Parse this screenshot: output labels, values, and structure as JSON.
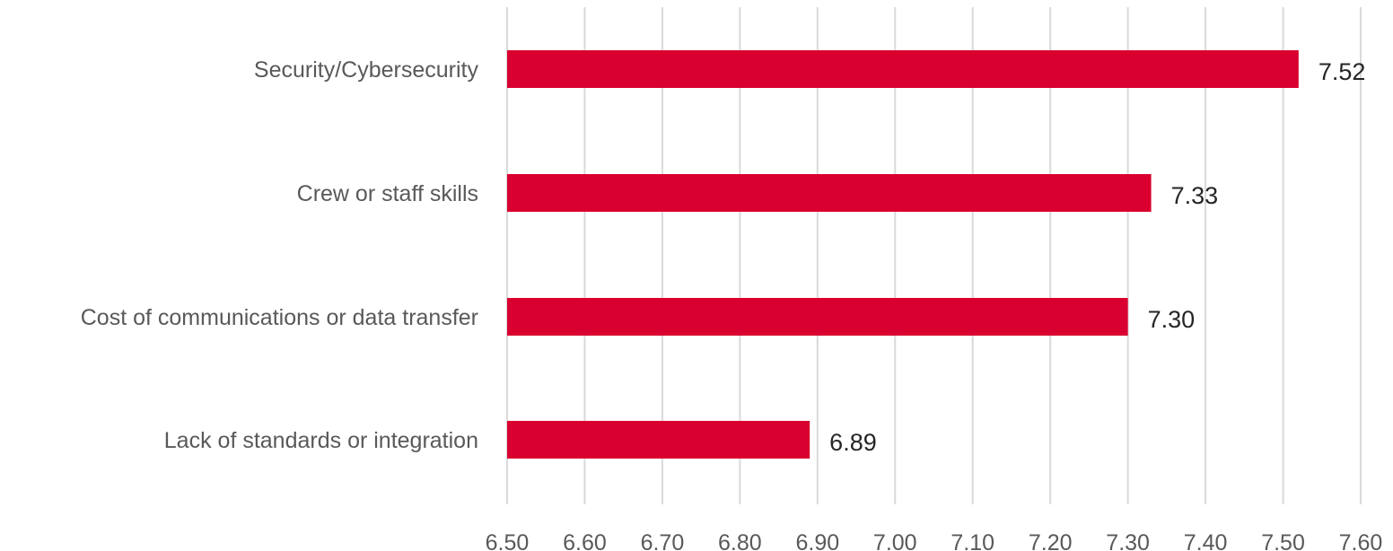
{
  "chart_data": {
    "type": "bar",
    "orientation": "horizontal",
    "categories": [
      "Security/Cybersecurity",
      "Crew or staff skills",
      "Cost of communications or data transfer",
      "Lack of standards or integration"
    ],
    "values": [
      7.52,
      7.33,
      7.3,
      6.89
    ],
    "data_labels": [
      "7.52",
      "7.33",
      "7.30",
      "6.89"
    ],
    "xlim": [
      6.5,
      7.6
    ],
    "x_ticks": [
      "6.50",
      "6.60",
      "6.70",
      "6.80",
      "6.90",
      "7.00",
      "7.10",
      "7.20",
      "7.30",
      "7.40",
      "7.50",
      "7.60"
    ],
    "grid": "vertical",
    "legend": "none",
    "bar_color": "#d9002f",
    "title": "",
    "xlabel": "",
    "ylabel": ""
  }
}
